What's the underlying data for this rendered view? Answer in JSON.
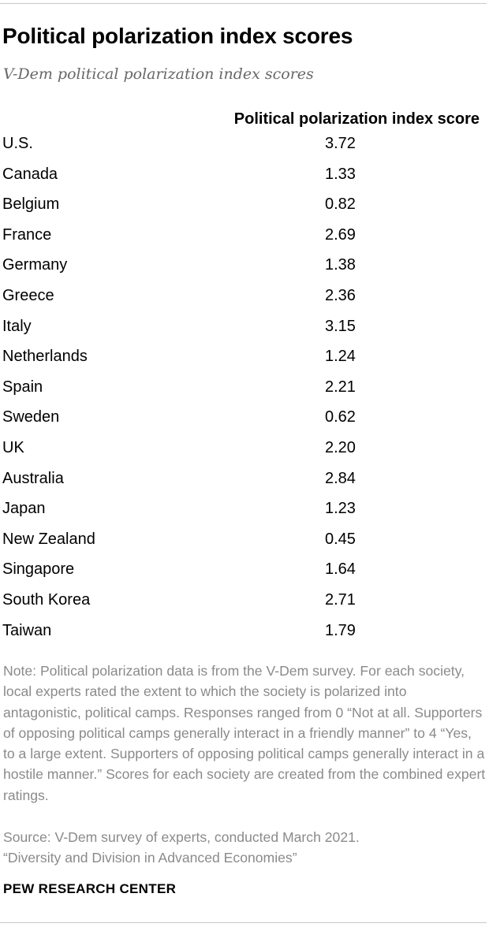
{
  "header": {
    "title": "Political polarization index scores",
    "subtitle": "V-Dem political polarization index scores"
  },
  "chart_data": {
    "type": "table",
    "title": "Political polarization index scores",
    "subtitle": "V-Dem political polarization index scores",
    "columns": [
      "",
      "Political polarization index score"
    ],
    "rows": [
      {
        "country": "U.S.",
        "score": "3.72"
      },
      {
        "country": "Canada",
        "score": "1.33"
      },
      {
        "country": "Belgium",
        "score": "0.82"
      },
      {
        "country": "France",
        "score": "2.69"
      },
      {
        "country": "Germany",
        "score": "1.38"
      },
      {
        "country": "Greece",
        "score": "2.36"
      },
      {
        "country": "Italy",
        "score": "3.15"
      },
      {
        "country": "Netherlands",
        "score": "1.24"
      },
      {
        "country": "Spain",
        "score": "2.21"
      },
      {
        "country": "Sweden",
        "score": "0.62"
      },
      {
        "country": "UK",
        "score": "2.20"
      },
      {
        "country": "Australia",
        "score": "2.84"
      },
      {
        "country": "Japan",
        "score": "1.23"
      },
      {
        "country": "New Zealand",
        "score": "0.45"
      },
      {
        "country": "Singapore",
        "score": "1.64"
      },
      {
        "country": "South Korea",
        "score": "2.71"
      },
      {
        "country": "Taiwan",
        "score": "1.79"
      }
    ]
  },
  "footer": {
    "note": "Note:  Political polarization data is from the V-Dem survey. For each society, local experts rated the extent to which the society is polarized into antagonistic, political camps. Responses ranged from 0 “Not at all. Supporters of opposing political camps generally interact in a friendly manner” to 4 “Yes, to a large extent. Supporters of opposing political camps generally interact in a hostile manner.” Scores for each society are created from the combined expert ratings.",
    "source": "Source: V-Dem survey of experts, conducted March 2021.",
    "report": "“Diversity and Division in Advanced Economies”",
    "brand": "PEW RESEARCH CENTER"
  },
  "colors": {
    "text": "#000000",
    "muted_text": "#8a8a8a",
    "subtitle_text": "#676767",
    "rule": "#c8c8c8"
  }
}
